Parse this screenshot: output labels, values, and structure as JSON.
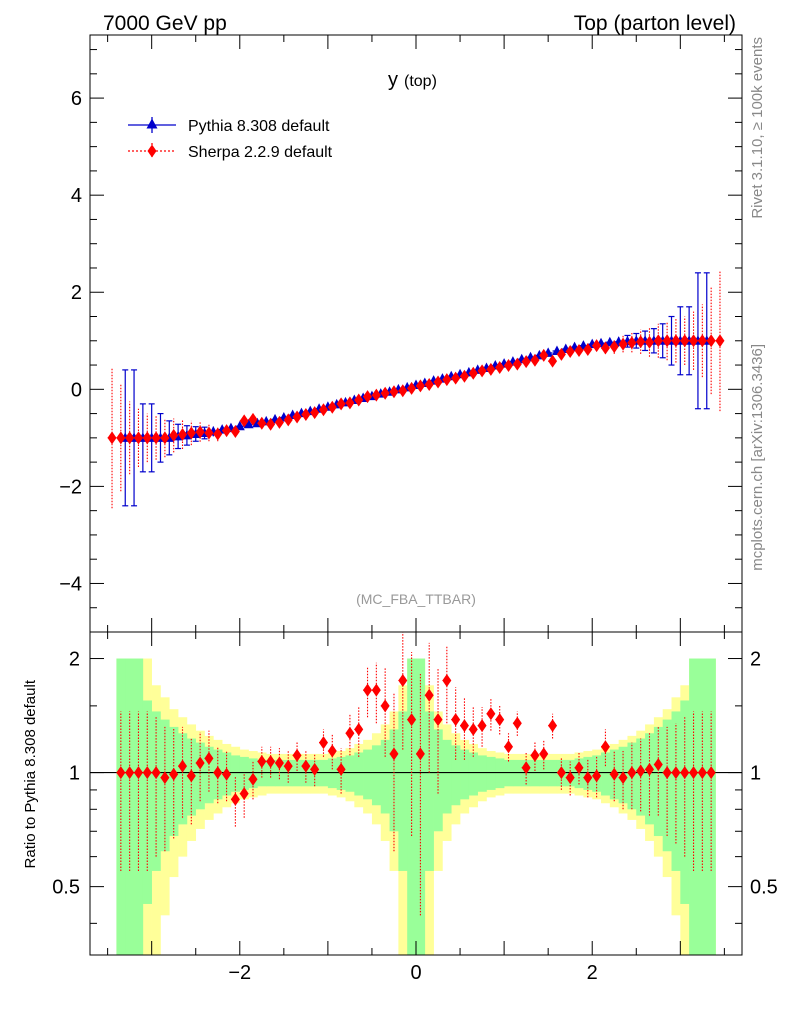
{
  "header": {
    "left": "7000 GeV pp",
    "right": "Top (parton level)"
  },
  "side": {
    "rivet": "Rivet 3.1.10, ≥ 100k events",
    "mcplots": "mcplots.cern.ch [arXiv:1306.3436]"
  },
  "colors": {
    "pythia": "#0000cc",
    "sherpa": "#ff0000",
    "band_inner": "#99ff99",
    "band_outer": "#ffff99"
  },
  "chart_data": [
    {
      "type": "scatter",
      "title": "y (top)",
      "title_main": "y",
      "title_sub": "(top)",
      "watermark": "(MC_FBA_TTBAR)",
      "xlim": [
        -3.7,
        3.7
      ],
      "ylim": [
        -5.0,
        7.3
      ],
      "yticks": [
        -4,
        -2,
        0,
        2,
        4,
        6
      ],
      "ytick_labels": [
        "−4",
        "−2",
        "0",
        "2",
        "4",
        "6"
      ],
      "legend_position": "top-left",
      "series": [
        {
          "name": "Pythia 8.308 default",
          "marker": "triangle",
          "x": [
            -3.3,
            -3.2,
            -3.1,
            -3.0,
            -2.9,
            -2.8,
            -2.7,
            -2.6,
            -2.5,
            -2.4,
            -2.3,
            -2.2,
            -2.1,
            -2.0,
            -1.9,
            -1.8,
            -1.7,
            -1.6,
            -1.5,
            -1.4,
            -1.3,
            -1.2,
            -1.1,
            -1.0,
            -0.9,
            -0.8,
            -0.7,
            -0.6,
            -0.5,
            -0.4,
            -0.3,
            -0.2,
            -0.1,
            0.0,
            0.1,
            0.2,
            0.3,
            0.4,
            0.5,
            0.6,
            0.7,
            0.8,
            0.9,
            1.0,
            1.1,
            1.2,
            1.3,
            1.4,
            1.5,
            1.6,
            1.7,
            1.8,
            1.9,
            2.0,
            2.1,
            2.2,
            2.3,
            2.4,
            2.5,
            2.6,
            2.7,
            2.8,
            2.9,
            3.0,
            3.1,
            3.2,
            3.3
          ],
          "y": [
            -1.0,
            -1.0,
            -1.0,
            -1.0,
            -1.0,
            -1.0,
            -0.97,
            -0.95,
            -0.92,
            -0.9,
            -0.87,
            -0.83,
            -0.8,
            -0.76,
            -0.72,
            -0.7,
            -0.66,
            -0.62,
            -0.58,
            -0.53,
            -0.49,
            -0.45,
            -0.4,
            -0.36,
            -0.31,
            -0.27,
            -0.22,
            -0.18,
            -0.14,
            -0.09,
            -0.05,
            0.0,
            0.04,
            0.09,
            0.13,
            0.18,
            0.22,
            0.27,
            0.31,
            0.35,
            0.4,
            0.44,
            0.49,
            0.53,
            0.57,
            0.62,
            0.66,
            0.7,
            0.75,
            0.79,
            0.83,
            0.87,
            0.9,
            0.93,
            0.95,
            0.97,
            0.98,
            0.99,
            1.0,
            1.0,
            1.0,
            1.0,
            1.0,
            1.0,
            1.0,
            1.0,
            1.0
          ],
          "yerr": [
            1.4,
            1.4,
            0.7,
            0.7,
            0.5,
            0.35,
            0.25,
            0.2,
            0.15,
            0.12,
            0.1,
            0.08,
            0.06,
            0.05,
            0.04,
            0.03,
            0.03,
            0.02,
            0.02,
            0.02,
            0.02,
            0.02,
            0.02,
            0.02,
            0.02,
            0.02,
            0.02,
            0.02,
            0.02,
            0.02,
            0.02,
            0.02,
            0.02,
            0.02,
            0.02,
            0.02,
            0.02,
            0.02,
            0.02,
            0.02,
            0.02,
            0.02,
            0.02,
            0.02,
            0.02,
            0.02,
            0.02,
            0.02,
            0.02,
            0.02,
            0.03,
            0.03,
            0.04,
            0.05,
            0.06,
            0.08,
            0.1,
            0.12,
            0.15,
            0.2,
            0.25,
            0.35,
            0.5,
            0.7,
            0.7,
            1.4,
            1.4
          ]
        },
        {
          "name": "Sherpa 2.2.9 default",
          "marker": "diamond",
          "x": [
            -3.45,
            -3.35,
            -3.25,
            -3.15,
            -3.05,
            -2.95,
            -2.85,
            -2.75,
            -2.65,
            -2.55,
            -2.45,
            -2.35,
            -2.25,
            -2.15,
            -2.05,
            -1.95,
            -1.85,
            -1.75,
            -1.65,
            -1.55,
            -1.45,
            -1.35,
            -1.25,
            -1.15,
            -1.05,
            -0.95,
            -0.85,
            -0.75,
            -0.65,
            -0.55,
            -0.45,
            -0.35,
            -0.25,
            -0.15,
            -0.05,
            0.05,
            0.15,
            0.25,
            0.35,
            0.45,
            0.55,
            0.65,
            0.75,
            0.85,
            0.95,
            1.05,
            1.15,
            1.25,
            1.35,
            1.45,
            1.55,
            1.65,
            1.75,
            1.85,
            1.95,
            2.05,
            2.15,
            2.25,
            2.35,
            2.45,
            2.55,
            2.65,
            2.75,
            2.85,
            2.95,
            3.05,
            3.15,
            3.25,
            3.35,
            3.45
          ],
          "y": [
            -1.0,
            -1.0,
            -1.0,
            -1.0,
            -1.0,
            -1.0,
            -1.0,
            -0.95,
            -0.93,
            -0.9,
            -0.88,
            -0.9,
            -0.92,
            -0.85,
            -0.87,
            -0.65,
            -0.62,
            -0.7,
            -0.72,
            -0.68,
            -0.63,
            -0.57,
            -0.52,
            -0.48,
            -0.42,
            -0.37,
            -0.3,
            -0.28,
            -0.22,
            -0.15,
            -0.12,
            -0.08,
            -0.05,
            -0.03,
            0.02,
            0.07,
            0.1,
            0.15,
            0.2,
            0.23,
            0.27,
            0.33,
            0.38,
            0.41,
            0.45,
            0.49,
            0.52,
            0.57,
            0.6,
            0.7,
            0.58,
            0.72,
            0.78,
            0.8,
            0.82,
            0.9,
            0.85,
            0.88,
            0.93,
            0.96,
            0.98,
            0.97,
            1.0,
            1.0,
            1.0,
            1.0,
            1.0,
            1.0,
            1.0,
            1.0
          ],
          "yerr": [
            1.45,
            1.1,
            0.75,
            0.6,
            0.5,
            0.45,
            0.4,
            0.35,
            0.3,
            0.25,
            0.2,
            0.17,
            0.15,
            0.12,
            0.1,
            0.08,
            0.07,
            0.06,
            0.05,
            0.05,
            0.05,
            0.05,
            0.05,
            0.05,
            0.05,
            0.05,
            0.05,
            0.05,
            0.05,
            0.05,
            0.05,
            0.05,
            0.05,
            0.05,
            0.05,
            0.05,
            0.05,
            0.05,
            0.05,
            0.05,
            0.05,
            0.05,
            0.05,
            0.05,
            0.05,
            0.05,
            0.05,
            0.05,
            0.05,
            0.05,
            0.05,
            0.05,
            0.06,
            0.07,
            0.08,
            0.1,
            0.12,
            0.15,
            0.17,
            0.2,
            0.25,
            0.3,
            0.35,
            0.4,
            0.45,
            0.5,
            0.6,
            0.75,
            1.1,
            1.45
          ]
        }
      ]
    },
    {
      "type": "scatter",
      "ylabel": "Ratio to Pythia 8.308 default",
      "xlim": [
        -3.7,
        3.7
      ],
      "ylim": [
        0.33,
        2.35
      ],
      "xticks": [
        -2,
        0,
        2
      ],
      "xtick_labels": [
        "−2",
        "0",
        "2"
      ],
      "yticks": [
        0.5,
        1,
        2
      ],
      "ytick_labels": [
        "0.5",
        "1",
        "2"
      ],
      "reference_line": 1,
      "band": {
        "x": [
          -3.35,
          -3.25,
          -3.15,
          -3.05,
          -2.95,
          -2.85,
          -2.75,
          -2.65,
          -2.55,
          -2.45,
          -2.35,
          -2.25,
          -2.15,
          -2.05,
          -1.95,
          -1.85,
          -1.75,
          -1.65,
          -1.55,
          -1.45,
          -1.35,
          -1.25,
          -1.15,
          -1.05,
          -0.95,
          -0.85,
          -0.75,
          -0.65,
          -0.55,
          -0.45,
          -0.35,
          -0.25,
          -0.15,
          -0.05,
          0.05,
          0.15,
          0.25,
          0.35,
          0.45,
          0.55,
          0.65,
          0.75,
          0.85,
          0.95,
          1.05,
          1.15,
          1.25,
          1.35,
          1.45,
          1.55,
          1.65,
          1.75,
          1.85,
          1.95,
          2.05,
          2.15,
          2.25,
          2.35,
          2.45,
          2.55,
          2.65,
          2.75,
          2.85,
          2.95,
          3.05,
          3.15,
          3.25,
          3.35
        ],
        "inner": [
          1.0,
          1.0,
          1.0,
          0.55,
          0.45,
          0.38,
          0.32,
          0.27,
          0.23,
          0.2,
          0.17,
          0.15,
          0.13,
          0.11,
          0.1,
          0.09,
          0.08,
          0.08,
          0.08,
          0.08,
          0.08,
          0.08,
          0.08,
          0.08,
          0.09,
          0.1,
          0.11,
          0.13,
          0.15,
          0.18,
          0.22,
          0.3,
          0.45,
          1.0,
          1.0,
          0.45,
          0.3,
          0.22,
          0.18,
          0.15,
          0.13,
          0.11,
          0.1,
          0.09,
          0.08,
          0.08,
          0.08,
          0.08,
          0.08,
          0.08,
          0.08,
          0.08,
          0.09,
          0.1,
          0.11,
          0.13,
          0.15,
          0.17,
          0.2,
          0.23,
          0.27,
          0.32,
          0.38,
          0.45,
          0.55,
          1.0,
          1.0,
          1.0
        ],
        "outer": [
          1.0,
          1.0,
          1.0,
          1.0,
          0.7,
          0.58,
          0.47,
          0.4,
          0.34,
          0.29,
          0.25,
          0.22,
          0.19,
          0.17,
          0.15,
          0.14,
          0.13,
          0.12,
          0.12,
          0.12,
          0.12,
          0.12,
          0.12,
          0.12,
          0.13,
          0.14,
          0.16,
          0.19,
          0.22,
          0.27,
          0.34,
          0.45,
          0.7,
          1.0,
          1.0,
          0.7,
          0.45,
          0.34,
          0.27,
          0.22,
          0.19,
          0.16,
          0.14,
          0.13,
          0.12,
          0.12,
          0.12,
          0.12,
          0.12,
          0.12,
          0.12,
          0.12,
          0.13,
          0.14,
          0.15,
          0.17,
          0.19,
          0.22,
          0.25,
          0.29,
          0.34,
          0.4,
          0.47,
          0.58,
          0.7,
          1.0,
          1.0,
          1.0
        ]
      },
      "series": [
        {
          "name": "Sherpa 2.2.9 default",
          "marker": "diamond",
          "x": [
            -3.35,
            -3.25,
            -3.15,
            -3.05,
            -2.95,
            -2.85,
            -2.75,
            -2.65,
            -2.55,
            -2.45,
            -2.35,
            -2.25,
            -2.15,
            -2.05,
            -1.95,
            -1.85,
            -1.75,
            -1.65,
            -1.55,
            -1.45,
            -1.35,
            -1.25,
            -1.15,
            -1.05,
            -0.95,
            -0.85,
            -0.75,
            -0.65,
            -0.55,
            -0.45,
            -0.35,
            -0.25,
            -0.15,
            -0.05,
            0.05,
            0.15,
            0.25,
            0.35,
            0.45,
            0.55,
            0.65,
            0.75,
            0.85,
            0.95,
            1.05,
            1.15,
            1.25,
            1.35,
            1.45,
            1.55,
            1.65,
            1.75,
            1.85,
            1.95,
            2.05,
            2.15,
            2.25,
            2.35,
            2.45,
            2.55,
            2.65,
            2.75,
            2.85,
            2.95,
            3.05,
            3.15,
            3.25,
            3.35
          ],
          "y": [
            1.0,
            1.0,
            1.0,
            1.0,
            1.0,
            0.97,
            0.99,
            1.04,
            0.98,
            1.06,
            1.09,
            1.0,
            0.99,
            0.85,
            0.88,
            0.96,
            1.07,
            1.07,
            1.06,
            1.04,
            1.11,
            1.04,
            1.02,
            1.2,
            1.14,
            1.02,
            1.27,
            1.3,
            1.65,
            1.65,
            1.5,
            1.12,
            1.75,
            1.38,
            1.12,
            1.6,
            1.38,
            1.75,
            1.38,
            1.33,
            1.3,
            1.33,
            1.43,
            1.38,
            1.17,
            1.35,
            1.03,
            1.11,
            1.12,
            1.33,
            1.0,
            0.97,
            1.03,
            0.97,
            0.98,
            1.17,
            0.99,
            0.97,
            1.0,
            1.01,
            1.02,
            1.05,
            1.0,
            1.0,
            1.0,
            1.0,
            1.0,
            1.0
          ],
          "yerr": [
            0.45,
            0.45,
            0.45,
            0.45,
            0.4,
            0.35,
            0.32,
            0.28,
            0.25,
            0.22,
            0.2,
            0.17,
            0.15,
            0.13,
            0.12,
            0.11,
            0.1,
            0.1,
            0.1,
            0.1,
            0.1,
            0.1,
            0.1,
            0.1,
            0.12,
            0.14,
            0.16,
            0.2,
            0.25,
            0.3,
            0.4,
            0.5,
            0.6,
            0.7,
            0.7,
            0.6,
            0.5,
            0.4,
            0.3,
            0.25,
            0.2,
            0.16,
            0.14,
            0.12,
            0.1,
            0.1,
            0.1,
            0.1,
            0.1,
            0.1,
            0.1,
            0.1,
            0.1,
            0.11,
            0.12,
            0.13,
            0.15,
            0.17,
            0.2,
            0.22,
            0.25,
            0.28,
            0.32,
            0.35,
            0.4,
            0.45,
            0.45,
            0.45
          ]
        }
      ]
    }
  ]
}
